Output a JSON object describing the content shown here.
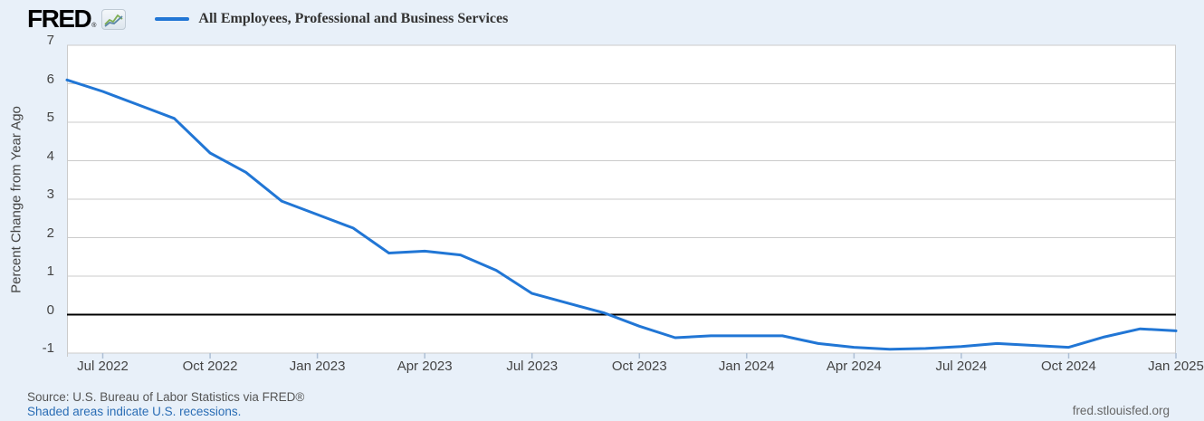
{
  "header": {
    "logo_text": "FRED",
    "logo_reg": "®",
    "legend_label": "All Employees, Professional and Business Services"
  },
  "y_axis": {
    "title": "Percent Change from Year Ago"
  },
  "footer": {
    "source": "Source: U.S. Bureau of Labor Statistics via FRED®",
    "recessions_note": "Shaded areas indicate U.S. recessions.",
    "site": "fred.stlouisfed.org"
  },
  "colors": {
    "background": "#e8f0f9",
    "plot_background": "#ffffff",
    "grid": "#cbcbcb",
    "zero_line": "#000000",
    "series": "#2176d5",
    "tick_text": "#444444",
    "link": "#2a6db5",
    "axis_tick": "#aebfd4"
  },
  "chart_data": {
    "type": "line",
    "title": "All Employees, Professional and Business Services",
    "ylabel": "Percent Change from Year Ago",
    "xlabel": "",
    "ylim": [
      -1,
      7
    ],
    "yticks": [
      7,
      6,
      5,
      4,
      3,
      2,
      1,
      0,
      -1
    ],
    "zero_line": 0,
    "grid": true,
    "legend_position": "top-left",
    "x": [
      "Jun 2022",
      "Jul 2022",
      "Aug 2022",
      "Sep 2022",
      "Oct 2022",
      "Nov 2022",
      "Dec 2022",
      "Jan 2023",
      "Feb 2023",
      "Mar 2023",
      "Apr 2023",
      "May 2023",
      "Jun 2023",
      "Jul 2023",
      "Aug 2023",
      "Sep 2023",
      "Oct 2023",
      "Nov 2023",
      "Dec 2023",
      "Jan 2024",
      "Feb 2024",
      "Mar 2024",
      "Apr 2024",
      "May 2024",
      "Jun 2024",
      "Jul 2024",
      "Aug 2024",
      "Sep 2024",
      "Oct 2024",
      "Nov 2024",
      "Dec 2024",
      "Jan 2025"
    ],
    "values": [
      6.1,
      5.8,
      5.45,
      5.1,
      4.2,
      3.7,
      2.95,
      2.6,
      2.25,
      1.6,
      1.65,
      1.55,
      1.15,
      0.55,
      0.3,
      0.05,
      -0.3,
      -0.6,
      -0.55,
      -0.55,
      -0.55,
      -0.75,
      -0.85,
      -0.9,
      -0.88,
      -0.83,
      -0.75,
      -0.8,
      -0.85,
      -0.58,
      -0.37,
      -0.42
    ],
    "xtick_indices": [
      1,
      4,
      7,
      10,
      13,
      16,
      19,
      22,
      25,
      28,
      31
    ],
    "xtick_labels": [
      "Jul 2022",
      "Oct 2022",
      "Jan 2023",
      "Apr 2023",
      "Jul 2023",
      "Oct 2023",
      "Jan 2024",
      "Apr 2024",
      "Jul 2024",
      "Oct 2024",
      "Jan 2025"
    ]
  }
}
